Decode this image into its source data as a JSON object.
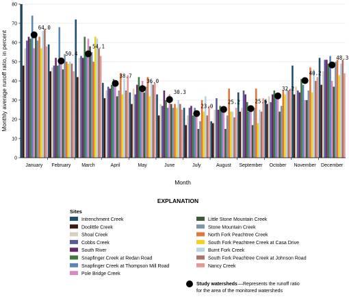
{
  "chart_data": {
    "type": "bar",
    "ylabel": "Monthly average runoff ratio, in percent",
    "xlabel": "Month",
    "ylim": [
      0,
      80
    ],
    "yticks": [
      0,
      10,
      20,
      30,
      40,
      50,
      60,
      70,
      80
    ],
    "grid": true,
    "categories": [
      "January",
      "February",
      "March",
      "April",
      "May",
      "June",
      "July",
      "August",
      "September",
      "October",
      "November",
      "December"
    ],
    "series": [
      {
        "name": "Intrenchment Creek",
        "color": "#1f4e6e",
        "values": [
          80,
          59,
          72,
          39,
          34,
          33,
          26,
          19,
          34,
          30,
          48,
          52
        ]
      },
      {
        "name": "Doolittle Creek",
        "color": "#3d1a12",
        "values": [
          48,
          45,
          42,
          31,
          28,
          22,
          17,
          18,
          24,
          28,
          33,
          38
        ]
      },
      {
        "name": "Shoal Creek",
        "color": "#d9cfc0",
        "values": [
          57,
          47,
          52,
          35,
          36,
          28,
          22,
          25,
          26,
          32,
          37,
          45
        ]
      },
      {
        "name": "Cobbs Creek",
        "color": "#5a5a96",
        "values": [
          61,
          48,
          53,
          37,
          33,
          27,
          26,
          31,
          35,
          29,
          35,
          51
        ]
      },
      {
        "name": "South River",
        "color": "#6a2a6a",
        "values": [
          63,
          52,
          52,
          36,
          38,
          35,
          27,
          25,
          33,
          33,
          34,
          51
        ]
      },
      {
        "name": "Snapfinger Creek at Redan Road",
        "color": "#3f7a3f",
        "values": [
          62,
          48,
          63,
          38,
          42,
          30,
          22,
          27,
          29,
          35,
          41,
          49
        ]
      },
      {
        "name": "Snapfinger Creek at Thompson Mill Road",
        "color": "#5b86b4",
        "values": [
          74,
          68,
          53,
          41,
          35,
          26,
          26,
          26,
          24,
          32,
          38,
          53
        ]
      },
      {
        "name": "Pole Bridge Creek",
        "color": "#d98ac2",
        "values": [
          57,
          49,
          62,
          39,
          40,
          33,
          24,
          24,
          24,
          33,
          30,
          40
        ]
      },
      {
        "name": "Little Stone Mountain Creek",
        "color": "#3f5a3a",
        "values": [
          64,
          46,
          58,
          32,
          34,
          28,
          15,
          15,
          17,
          24,
          30,
          37
        ]
      },
      {
        "name": "Stone Mountain Creek",
        "color": "#7b96ab",
        "values": [
          61,
          54,
          55,
          35,
          37,
          26,
          19,
          22,
          26,
          27,
          35,
          50
        ]
      },
      {
        "name": "North Fork Peachtree Creek",
        "color": "#e0783c",
        "values": [
          63,
          50,
          50,
          44,
          42,
          28,
          30,
          36,
          36,
          35,
          47,
          51
        ]
      },
      {
        "name": "South Fork Peachtree Creek at Casa Drive",
        "color": "#f2d21e",
        "values": [
          57,
          49,
          63,
          33,
          32,
          26,
          24,
          24,
          18,
          33,
          34,
          43
        ]
      },
      {
        "name": "Burnt Fork Creek",
        "color": "#b8d4e6",
        "values": [
          66,
          50,
          62,
          41,
          40,
          30,
          32,
          24,
          25,
          36,
          46,
          49
        ]
      },
      {
        "name": "South Fork Peachtree Creek at Johnson Road",
        "color": "#a97264",
        "values": [
          67,
          49,
          57,
          35,
          38,
          28,
          22,
          21,
          24,
          35,
          40,
          51
        ]
      },
      {
        "name": "Nancy Creek",
        "color": "#e39a96",
        "values": [
          58,
          45,
          53,
          43,
          39,
          25,
          27,
          26,
          31,
          36,
          42,
          44
        ]
      }
    ],
    "study_watersheds": {
      "name": "Study watersheds",
      "description": "Represents the runoff ratio for the area of the monitored watersheds",
      "values": [
        64.0,
        50.4,
        54.1,
        38.7,
        36.0,
        30.3,
        23.0,
        25.2,
        25.6,
        32.2,
        40.2,
        48.3
      ],
      "labels": [
        "64.0",
        "50.4",
        "54.1",
        "38.7",
        "36.0",
        "30.3",
        "23.0",
        "25.2",
        "25.6",
        "32.2",
        "40.2",
        "48.3"
      ]
    },
    "label_heights": [
      64.0,
      50.4,
      54.1,
      38.7,
      36.0,
      30.3,
      23.0,
      25.2,
      25.6,
      32.2,
      40.2,
      48.3
    ]
  },
  "legend": {
    "title": "EXPLANATION",
    "sites_heading": "Sites",
    "study_label": "Study watersheds",
    "study_desc_1": "—Represents the runoff ratio",
    "study_desc_2": "for the area of the monitored watersheds"
  }
}
